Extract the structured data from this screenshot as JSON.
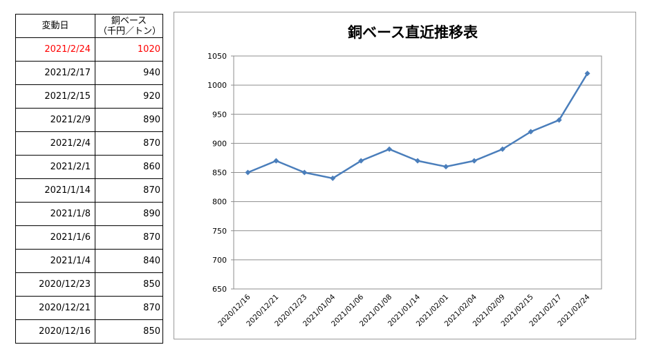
{
  "table": {
    "headers": [
      "変動日",
      "銅ベース\n（千円／トン）"
    ],
    "rows": [
      {
        "date": "2021/2/24",
        "price": "1020"
      },
      {
        "date": "2021/2/17",
        "price": "940"
      },
      {
        "date": "2021/2/15",
        "price": "920"
      },
      {
        "date": "2021/2/9",
        "price": "890"
      },
      {
        "date": "2021/2/4",
        "price": "870"
      },
      {
        "date": "2021/2/1",
        "price": "860"
      },
      {
        "date": "2021/1/14",
        "price": "870"
      },
      {
        "date": "2021/1/8",
        "price": "890"
      },
      {
        "date": "2021/1/6",
        "price": "870"
      },
      {
        "date": "2021/1/4",
        "price": "840"
      },
      {
        "date": "2020/12/23",
        "price": "850"
      },
      {
        "date": "2020/12/21",
        "price": "870"
      },
      {
        "date": "2020/12/16",
        "price": "850"
      }
    ],
    "highlight_row": 0,
    "highlight_color": "#ff0000"
  },
  "chart_data": {
    "type": "line",
    "title": "銅ベース直近推移表",
    "xlabel": "",
    "ylabel": "",
    "categories": [
      "2020/12/16",
      "2020/12/21",
      "2020/12/23",
      "2021/01/04",
      "2021/01/06",
      "2021/01/08",
      "2021/01/14",
      "2021/02/01",
      "2021/02/04",
      "2021/02/09",
      "2021/02/15",
      "2021/02/17",
      "2021/02/24"
    ],
    "series": [
      {
        "values": [
          850,
          870,
          850,
          840,
          870,
          890,
          870,
          860,
          870,
          890,
          920,
          940,
          1020
        ],
        "color": "#4a7ebb"
      }
    ],
    "ylim": [
      650,
      1050
    ],
    "yticks": [
      650,
      700,
      750,
      800,
      850,
      900,
      950,
      1000,
      1050
    ],
    "grid": true,
    "legend": "none",
    "marker": "diamond"
  }
}
